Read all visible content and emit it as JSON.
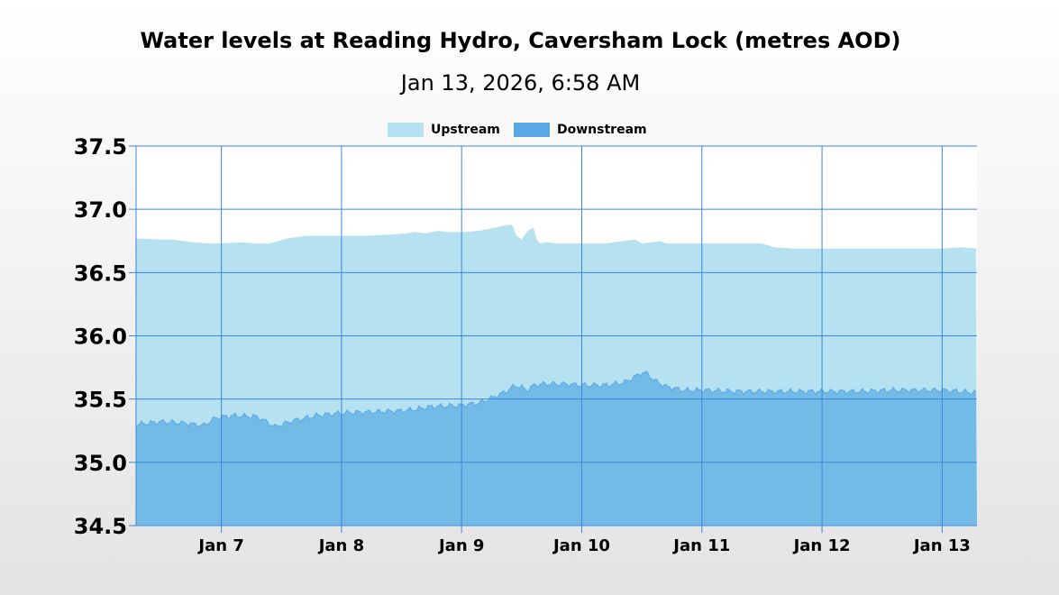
{
  "chart_data": {
    "type": "area",
    "title": "Water levels at Reading Hydro, Caversham Lock (metres AOD)",
    "subtitle": "Jan 13, 2026, 6:58 AM",
    "xlabel": "",
    "ylabel": "",
    "x_ticks": [
      "Jan 7",
      "Jan 8",
      "Jan 9",
      "Jan 10",
      "Jan 11",
      "Jan 12",
      "Jan 13"
    ],
    "xlim": [
      6.29,
      13.29
    ],
    "ylim": [
      34.5,
      37.5
    ],
    "y_ticks": [
      "34.5",
      "35.0",
      "35.5",
      "36.0",
      "36.5",
      "37.0",
      "37.5"
    ],
    "grid": true,
    "legend_position": "top-center",
    "colors": {
      "upstream": "#b5e1f0",
      "downstream": "#72bbe6",
      "downstream_line": "#5aa8e6",
      "grid": "#3f85d6",
      "legend_upstream": "#b5e1f0",
      "legend_downstream": "#5aa8e6"
    },
    "series": [
      {
        "name": "Upstream",
        "x": [
          6.29,
          6.5,
          6.6,
          6.75,
          6.9,
          7.0,
          7.15,
          7.3,
          7.4,
          7.55,
          7.7,
          7.9,
          8.0,
          8.2,
          8.4,
          8.55,
          8.6,
          8.7,
          8.8,
          8.9,
          9.0,
          9.15,
          9.2,
          9.35,
          9.42,
          9.45,
          9.5,
          9.55,
          9.6,
          9.62,
          9.65,
          9.7,
          9.8,
          10.0,
          10.2,
          10.35,
          10.45,
          10.5,
          10.6,
          10.65,
          10.7,
          11.0,
          11.3,
          11.5,
          11.6,
          11.75,
          12.0,
          12.2,
          12.5,
          12.8,
          13.0,
          13.15,
          13.29
        ],
        "values": [
          36.77,
          36.76,
          36.76,
          36.74,
          36.73,
          36.73,
          36.74,
          36.73,
          36.73,
          36.77,
          36.79,
          36.79,
          36.79,
          36.79,
          36.8,
          36.81,
          36.82,
          36.81,
          36.83,
          36.82,
          36.82,
          36.83,
          36.84,
          36.87,
          36.88,
          36.8,
          36.76,
          36.83,
          36.86,
          36.77,
          36.73,
          36.74,
          36.73,
          36.73,
          36.73,
          36.75,
          36.76,
          36.73,
          36.74,
          36.75,
          36.73,
          36.73,
          36.73,
          36.73,
          36.7,
          36.69,
          36.69,
          36.69,
          36.69,
          36.69,
          36.69,
          36.7,
          36.69
        ]
      },
      {
        "name": "Downstream",
        "x": [
          6.29,
          6.5,
          6.7,
          6.85,
          6.95,
          7.1,
          7.3,
          7.45,
          7.5,
          7.6,
          7.8,
          8.0,
          8.3,
          8.55,
          8.75,
          9.0,
          9.15,
          9.25,
          9.35,
          9.45,
          9.55,
          9.6,
          9.7,
          9.85,
          10.0,
          10.2,
          10.35,
          10.45,
          10.5,
          10.55,
          10.6,
          10.7,
          10.85,
          11.0,
          11.3,
          11.5,
          11.7,
          12.0,
          12.3,
          12.6,
          12.8,
          13.0,
          13.15,
          13.29
        ],
        "values": [
          35.3,
          35.32,
          35.31,
          35.29,
          35.35,
          35.37,
          35.36,
          35.28,
          35.3,
          35.33,
          35.37,
          35.39,
          35.4,
          35.41,
          35.44,
          35.45,
          35.47,
          35.51,
          35.55,
          35.61,
          35.57,
          35.61,
          35.62,
          35.62,
          35.61,
          35.61,
          35.63,
          35.68,
          35.71,
          35.7,
          35.65,
          35.6,
          35.57,
          35.57,
          35.56,
          35.56,
          35.56,
          35.56,
          35.56,
          35.57,
          35.57,
          35.57,
          35.56,
          35.55
        ]
      }
    ]
  }
}
